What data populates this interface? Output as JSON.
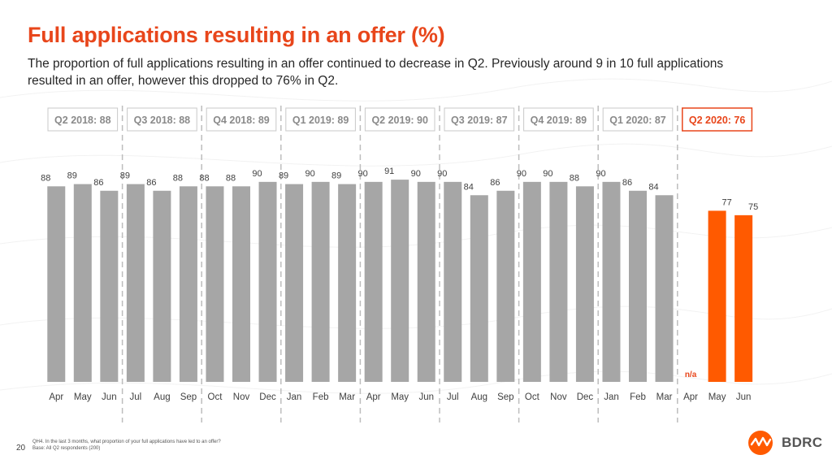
{
  "header": {
    "title": "Full applications resulting in an offer (%)",
    "subtitle": "The proportion of full applications resulting in an offer continued to decrease in Q2. Previously around 9 in 10 full applications resulted in an offer, however this dropped to 76% in Q2."
  },
  "chart_data": {
    "type": "bar",
    "ylim": [
      0,
      100
    ],
    "grid": false,
    "categories": [
      "Apr",
      "May",
      "Jun",
      "Jul",
      "Aug",
      "Sep",
      "Oct",
      "Nov",
      "Dec",
      "Jan",
      "Feb",
      "Mar",
      "Apr",
      "May",
      "Jun",
      "Jul",
      "Aug",
      "Sep",
      "Oct",
      "Nov",
      "Dec",
      "Jan",
      "Feb",
      "Mar",
      "Apr",
      "May",
      "Jun"
    ],
    "values": [
      88,
      89,
      86,
      89,
      86,
      88,
      88,
      88,
      90,
      89,
      90,
      89,
      90,
      91,
      90,
      90,
      84,
      86,
      90,
      90,
      88,
      90,
      86,
      84,
      null,
      77,
      75
    ],
    "value_labels": [
      "88",
      "89",
      "86",
      "89",
      "86",
      "88",
      "88",
      "88",
      "90",
      "89",
      "90",
      "89",
      "90",
      "91",
      "90",
      "90",
      "84",
      "86",
      "90",
      "90",
      "88",
      "90",
      "86",
      "84",
      "n/a",
      "77",
      "75"
    ],
    "highlight_from_index": 24,
    "quarters": [
      {
        "label": "Q2 2018: 88",
        "highlight": false
      },
      {
        "label": "Q3 2018: 88",
        "highlight": false
      },
      {
        "label": "Q4 2018: 89",
        "highlight": false
      },
      {
        "label": "Q1 2019: 89",
        "highlight": false
      },
      {
        "label": "Q2 2019: 90",
        "highlight": false
      },
      {
        "label": "Q3 2019: 87",
        "highlight": false
      },
      {
        "label": "Q4 2019: 89",
        "highlight": false
      },
      {
        "label": "Q1 2020: 87",
        "highlight": false
      },
      {
        "label": "Q2 2020: 76",
        "highlight": true
      }
    ],
    "colors": {
      "bar": "#a6a6a6",
      "highlight": "#ff5a00",
      "accent": "#e8461b"
    }
  },
  "footer": {
    "question": "QH4. In the last 3 months, what proportion of your full applications have led to an offer?",
    "base": "Base: All Q2 respondents (200)",
    "page_number": "20",
    "logo_text": "BDRC"
  }
}
